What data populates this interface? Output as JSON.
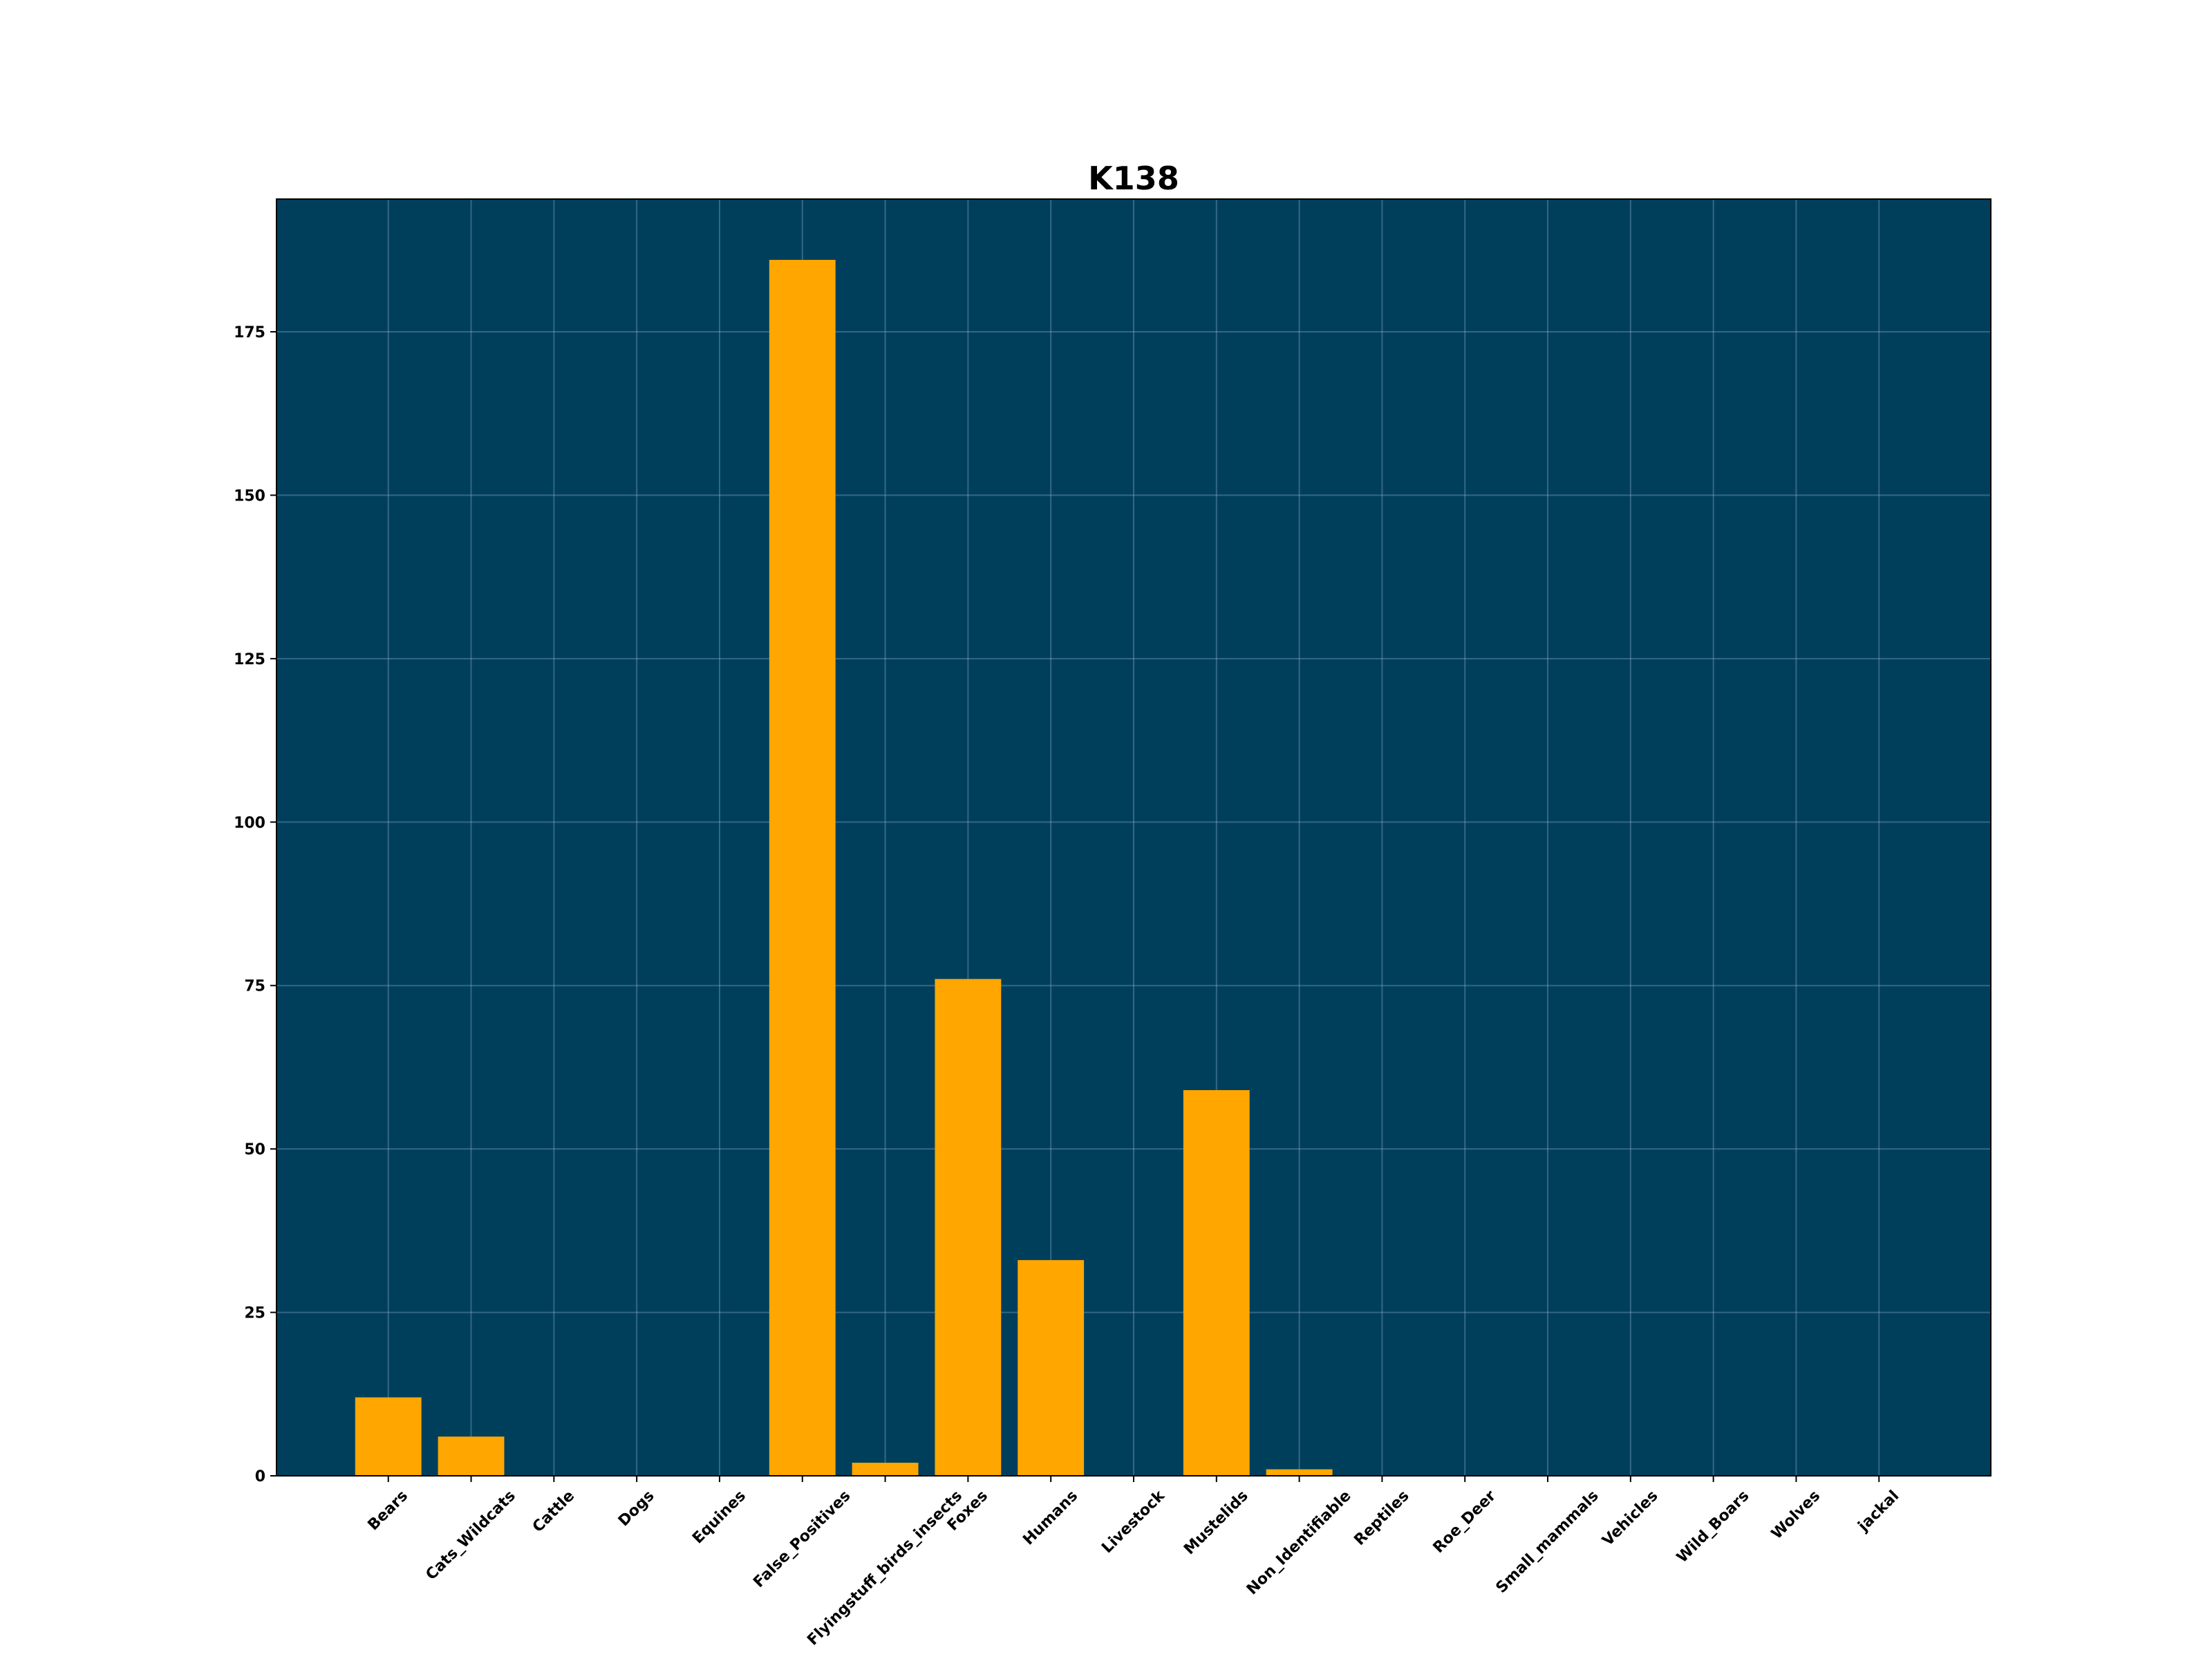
{
  "chart_data": {
    "type": "bar",
    "title": "K138",
    "categories": [
      "Bears",
      "Cats_Wildcats",
      "Cattle",
      "Dogs",
      "Equines",
      "False_Positives",
      "Flyingstuff_birds_insects",
      "Foxes",
      "Humans",
      "Livestock",
      "Mustelids",
      "Non_Identifiable",
      "Reptiles",
      "Roe_Deer",
      "Small_mammals",
      "Vehicles",
      "Wild_Boars",
      "Wolves",
      "jackal"
    ],
    "values": [
      12,
      6,
      0,
      0,
      0,
      186,
      2,
      76,
      33,
      0,
      59,
      1,
      0,
      0,
      0,
      0,
      0,
      0,
      0
    ],
    "color": "#ffa600",
    "background": "#003f5c",
    "ylim": [
      0,
      195.3
    ],
    "yticks": [
      0,
      25,
      50,
      75,
      100,
      125,
      150,
      175
    ],
    "grid": true
  }
}
